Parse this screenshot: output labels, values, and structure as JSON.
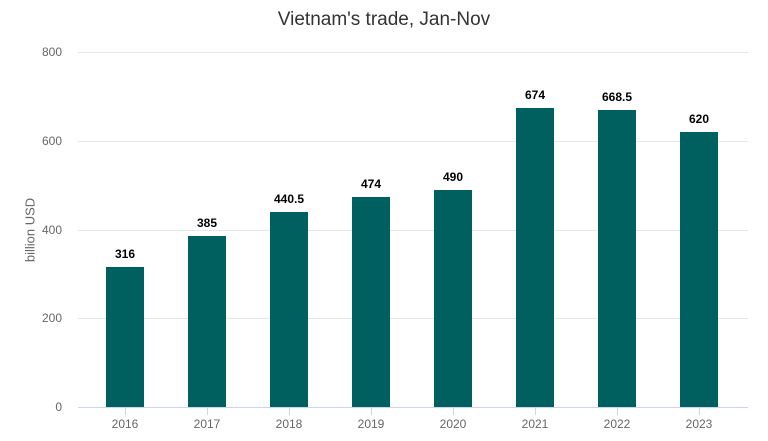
{
  "chart_data": {
    "type": "bar",
    "title": "Vietnam's trade, Jan-Nov",
    "xlabel": "",
    "ylabel": "billion USD",
    "categories": [
      "2016",
      "2017",
      "2018",
      "2019",
      "2020",
      "2021",
      "2022",
      "2023"
    ],
    "values": [
      316,
      385,
      440.5,
      474,
      490,
      674,
      668.5,
      620
    ],
    "data_labels": [
      "316",
      "385",
      "440.5",
      "474",
      "490",
      "674",
      "668.5",
      "620"
    ],
    "ylim": [
      0,
      800
    ],
    "yticks": [
      0,
      200,
      400,
      600,
      800
    ],
    "ytick_labels": [
      "0",
      "200",
      "400",
      "600",
      "800"
    ],
    "grid": true,
    "legend": null,
    "bar_color": "#006060"
  }
}
